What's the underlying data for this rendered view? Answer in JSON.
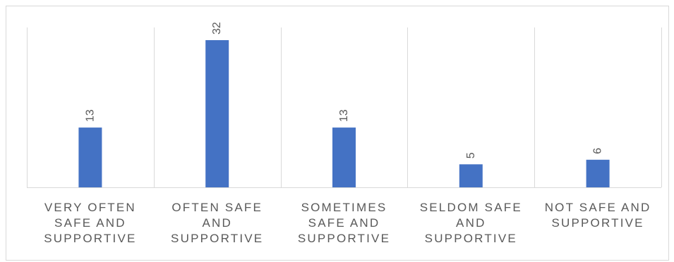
{
  "chart_data": {
    "type": "bar",
    "title": "",
    "xlabel": "",
    "ylabel": "",
    "categories": [
      "VERY OFTEN SAFE AND SUPPORTIVE",
      "OFTEN SAFE AND SUPPORTIVE",
      "SOMETIMES SAFE AND SUPPORTIVE",
      "SELDOM SAFE AND SUPPORTIVE",
      "NOT SAFE AND SUPPORTIVE"
    ],
    "category_label_lines": [
      [
        "VERY OFTEN",
        "SAFE AND",
        "SUPPORTIVE"
      ],
      [
        "OFTEN SAFE",
        "AND",
        "SUPPORTIVE"
      ],
      [
        "SOMETIMES",
        "SAFE AND",
        "SUPPORTIVE"
      ],
      [
        "SELDOM SAFE",
        "AND",
        "SUPPORTIVE"
      ],
      [
        "NOT SAFE AND",
        "SUPPORTIVE"
      ]
    ],
    "values": [
      13,
      32,
      13,
      5,
      6
    ],
    "ylim": [
      0,
      32
    ],
    "grid": "vertical category separators",
    "legend": "none",
    "bar_color": "#4472c4",
    "label_color": "#595959",
    "gridline_color": "#d9d9d9"
  }
}
